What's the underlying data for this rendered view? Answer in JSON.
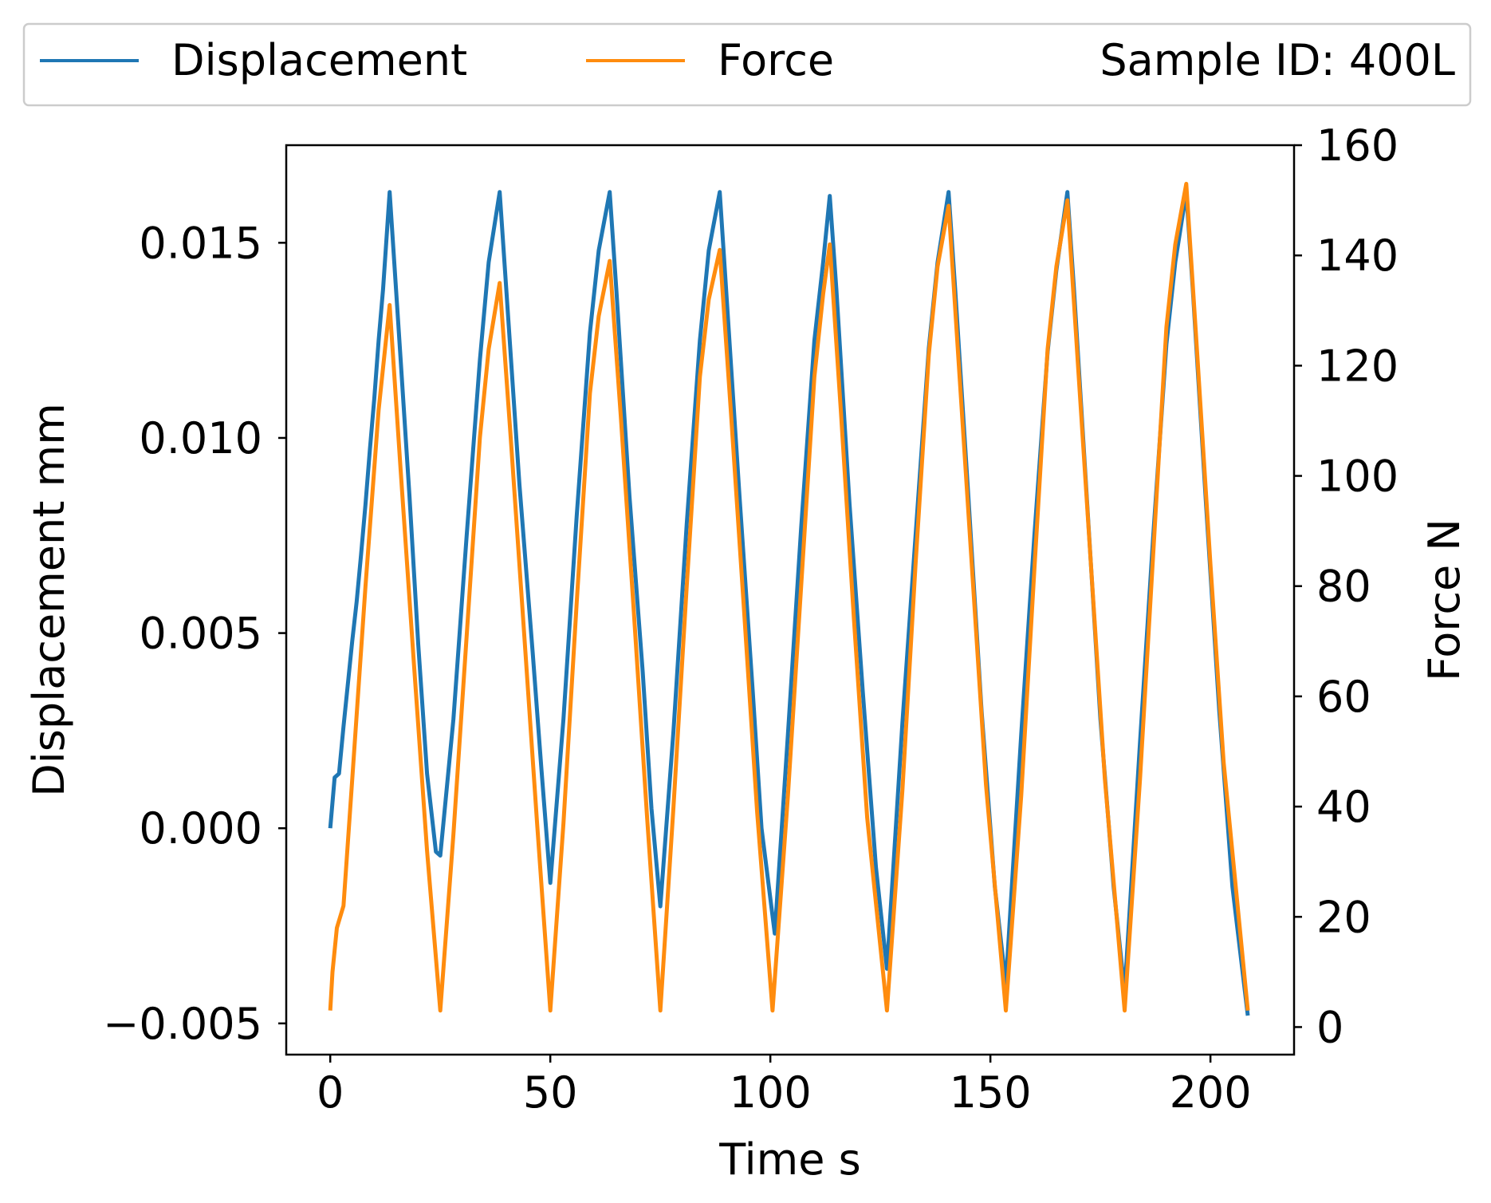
{
  "chart_data": {
    "type": "line",
    "x_label": "Time s",
    "y_label_left": "Displacement mm",
    "y_label_right": "Force N",
    "x_ticks": [
      "0",
      "50",
      "100",
      "150",
      "200"
    ],
    "x_tick_values": [
      0,
      50,
      100,
      150,
      200
    ],
    "y_left_ticks": [
      "−0.005",
      "0.000",
      "0.005",
      "0.010",
      "0.015"
    ],
    "y_left_tick_values": [
      -0.005,
      0.0,
      0.005,
      0.01,
      0.015
    ],
    "y_right_ticks": [
      "0",
      "20",
      "40",
      "60",
      "80",
      "100",
      "120",
      "140",
      "160"
    ],
    "y_right_tick_values": [
      0,
      20,
      40,
      60,
      80,
      100,
      120,
      140,
      160
    ],
    "x_range": [
      -10,
      219
    ],
    "y_left_range": [
      -0.0058,
      0.0175
    ],
    "y_right_range": [
      -5,
      160
    ],
    "grid": false,
    "legend_position": "top",
    "legend_extra_text": "Sample ID: 400L",
    "series": [
      {
        "name": "Displacement",
        "axis": "left",
        "color": "#1f77b4",
        "x": [
          0,
          1,
          2,
          3,
          4,
          5,
          6,
          7,
          8,
          9,
          10,
          11,
          12,
          13.5,
          16,
          18,
          20,
          22,
          24,
          25,
          28,
          31,
          34,
          36,
          38.5,
          40,
          43,
          46,
          48,
          50,
          53,
          56,
          59,
          61,
          63.5,
          65,
          68,
          71,
          73,
          75,
          78,
          81,
          84,
          86,
          88.5,
          90,
          93,
          96,
          98,
          101,
          104,
          107,
          110,
          112,
          113.5,
          115,
          118,
          121,
          124,
          126.5,
          130,
          133,
          136,
          138,
          140.5,
          142,
          145,
          148,
          151,
          153.5,
          157,
          160,
          163,
          165,
          167.5,
          169,
          172,
          175,
          178,
          180.5,
          184,
          187,
          190,
          192,
          194.5,
          196,
          199,
          202,
          205,
          208.5
        ],
        "y": [
          0.0,
          0.0013,
          0.0014,
          0.0026,
          0.0037,
          0.0048,
          0.0058,
          0.007,
          0.0083,
          0.0097,
          0.011,
          0.0125,
          0.0138,
          0.0163,
          0.012,
          0.0085,
          0.0047,
          0.0014,
          -0.0006,
          -0.0007,
          0.0028,
          0.0075,
          0.012,
          0.0145,
          0.0163,
          0.0138,
          0.0088,
          0.0045,
          0.0015,
          -0.0014,
          0.0028,
          0.008,
          0.0127,
          0.0148,
          0.0163,
          0.0138,
          0.0085,
          0.004,
          0.0005,
          -0.002,
          0.0025,
          0.0078,
          0.0125,
          0.0148,
          0.0163,
          0.0137,
          0.0085,
          0.0035,
          0.0,
          -0.0027,
          0.0024,
          0.0077,
          0.0125,
          0.0145,
          0.0162,
          0.0138,
          0.0083,
          0.0035,
          -0.001,
          -0.0036,
          0.0027,
          0.0075,
          0.0123,
          0.0145,
          0.0163,
          0.0138,
          0.0085,
          0.003,
          -0.0015,
          -0.004,
          0.0024,
          0.0075,
          0.0122,
          0.0143,
          0.0163,
          0.0138,
          0.0083,
          0.0028,
          -0.0015,
          -0.0042,
          0.0022,
          0.0075,
          0.0124,
          0.0145,
          0.0163,
          0.0138,
          0.0083,
          0.003,
          -0.0015,
          -0.0048
        ]
      },
      {
        "name": "Force",
        "axis": "right",
        "color": "#ff8c0e",
        "x": [
          0,
          0.5,
          1.5,
          3,
          5,
          8,
          11,
          13.5,
          16,
          19,
          22,
          25,
          28,
          31,
          34,
          36,
          38.5,
          41,
          44,
          47,
          50,
          53,
          56,
          59,
          61,
          63.5,
          66,
          69,
          72,
          75,
          78,
          81,
          84,
          86,
          88.5,
          91,
          94,
          97,
          100.5,
          104,
          107,
          110,
          112,
          113.5,
          116,
          119,
          122,
          126.5,
          130,
          133,
          136,
          138,
          140.5,
          143,
          146,
          149,
          153.5,
          157,
          160,
          163,
          165,
          167.5,
          170,
          173,
          176,
          180.5,
          184,
          187,
          190,
          192,
          194.5,
          197,
          200,
          203,
          208.5
        ],
        "y": [
          3,
          10,
          18,
          22,
          45,
          80,
          112,
          131,
          101,
          66,
          32,
          3,
          35,
          71,
          107,
          123,
          135,
          107,
          72,
          37,
          3,
          37,
          77,
          115,
          129,
          139,
          111,
          75,
          38,
          3,
          40,
          80,
          118,
          132,
          141,
          112,
          76,
          39,
          3,
          42,
          80,
          118,
          133,
          142,
          112,
          74,
          38,
          3,
          43,
          84,
          122,
          138,
          149,
          118,
          81,
          44,
          3,
          42,
          83,
          123,
          138,
          150,
          119,
          82,
          45,
          3,
          45,
          86,
          127,
          142,
          153,
          122,
          84,
          48,
          3
        ]
      }
    ]
  }
}
